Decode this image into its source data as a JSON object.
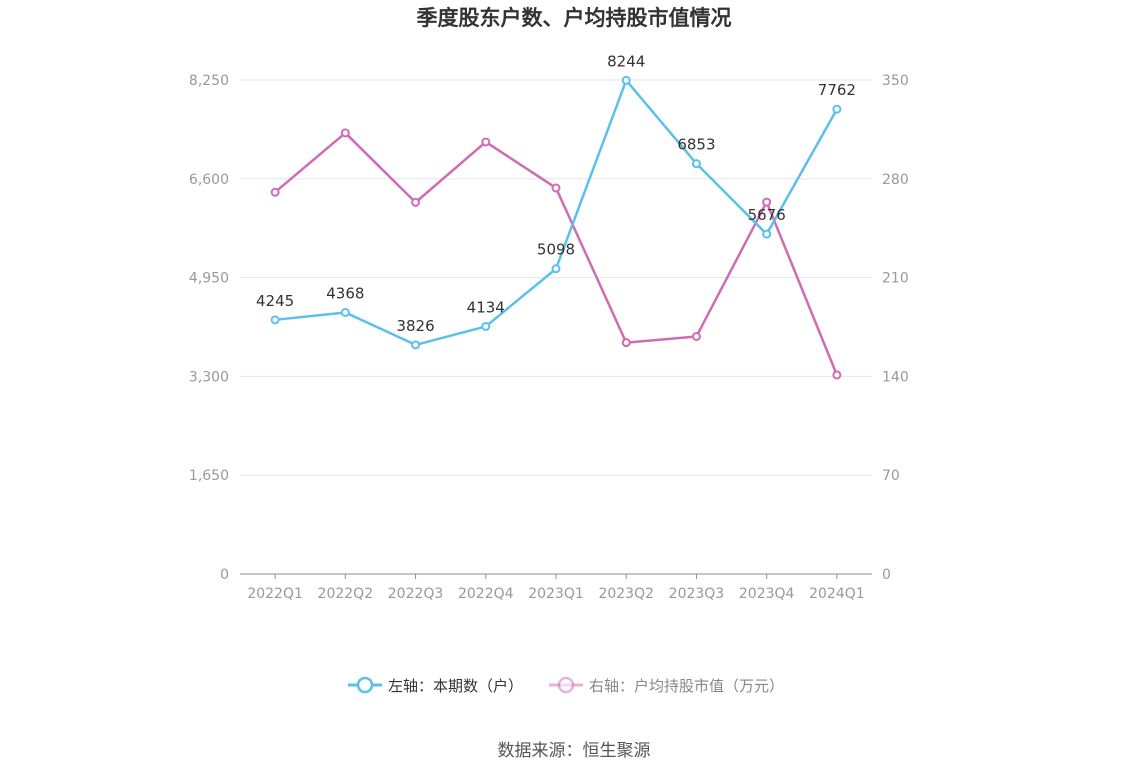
{
  "chart_data": {
    "type": "line",
    "title": "季度股东户数、户均持股市值情况",
    "categories": [
      "2022Q1",
      "2022Q2",
      "2022Q3",
      "2022Q4",
      "2023Q1",
      "2023Q2",
      "2023Q3",
      "2023Q4",
      "2024Q1"
    ],
    "y_left": {
      "ticks": [
        "0",
        "1,650",
        "3,300",
        "4,950",
        "6,600",
        "8,250"
      ],
      "range": [
        0,
        8250
      ]
    },
    "y_right": {
      "ticks": [
        "0",
        "70",
        "140",
        "210",
        "280",
        "350"
      ],
      "range": [
        0,
        350
      ]
    },
    "grid": true,
    "legend_position": "bottom",
    "series": [
      {
        "name": "左轴：本期数（户）",
        "axis": "left",
        "color": "#5bc0eb",
        "values": [
          4245,
          4368,
          3826,
          4134,
          5098,
          8244,
          6853,
          5676,
          7762
        ],
        "labels": [
          "4245",
          "4368",
          "3826",
          "4134",
          "5098",
          "8244",
          "6853",
          "5676",
          "7762"
        ]
      },
      {
        "name": "右轴：户均持股市值（万元）",
        "axis": "right",
        "color": "#d16bb4",
        "values": [
          270.5,
          312.5,
          263.3,
          306.1,
          273.5,
          163.9,
          168.3,
          263.5,
          141.0
        ]
      }
    ]
  },
  "source_text": "数据来源：恒生聚源"
}
